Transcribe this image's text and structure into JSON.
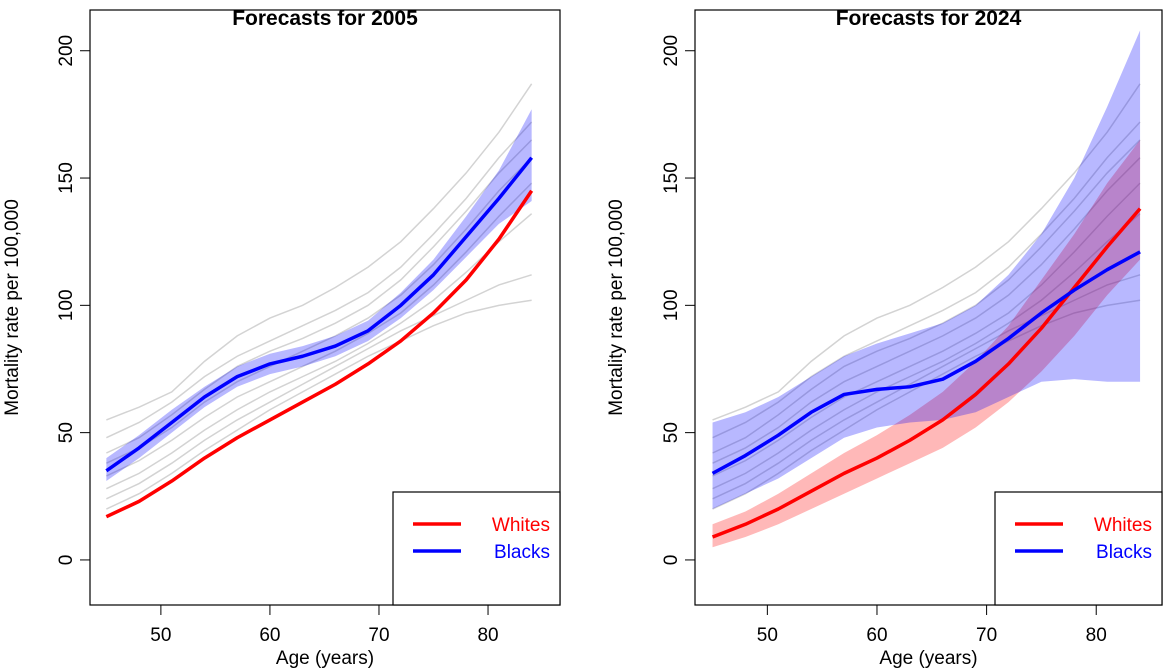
{
  "chart_data": [
    {
      "type": "line",
      "title": "Forecasts for 2005",
      "x_label": "Age (years)",
      "y_label": "Mortality rate per 100,000",
      "x": [
        45,
        48,
        51,
        54,
        57,
        60,
        63,
        66,
        69,
        72,
        75,
        78,
        81,
        84
      ],
      "background_lines": [
        [
          55,
          60,
          66,
          78,
          88,
          95,
          100,
          107,
          115,
          125,
          138,
          152,
          168,
          187
        ],
        [
          48,
          54,
          62,
          72,
          80,
          86,
          92,
          98,
          105,
          115,
          128,
          142,
          158,
          172
        ],
        [
          42,
          48,
          57,
          67,
          76,
          82,
          87,
          93,
          100,
          110,
          123,
          137,
          152,
          165
        ],
        [
          38,
          44,
          52,
          62,
          70,
          76,
          82,
          88,
          95,
          104,
          116,
          130,
          145,
          158
        ],
        [
          33,
          39,
          47,
          56,
          64,
          70,
          76,
          82,
          89,
          97,
          108,
          121,
          135,
          148
        ],
        [
          28,
          34,
          42,
          51,
          59,
          66,
          72,
          78,
          85,
          93,
          102,
          113,
          125,
          136
        ],
        [
          24,
          30,
          38,
          47,
          55,
          62,
          69,
          76,
          83,
          90,
          96,
          102,
          108,
          112
        ],
        [
          20,
          26,
          34,
          43,
          51,
          59,
          66,
          73,
          80,
          86,
          92,
          97,
          100,
          102
        ]
      ],
      "series": [
        {
          "name": "Whites",
          "color": "#ff0000",
          "values": [
            17,
            23,
            31,
            40,
            48,
            55,
            62,
            69,
            77,
            86,
            97,
            110,
            126,
            145
          ]
        },
        {
          "name": "Blacks",
          "color": "#0000ff",
          "values": [
            35,
            44,
            54,
            64,
            72,
            77,
            80,
            84,
            90,
            100,
            112,
            127,
            142,
            158
          ],
          "lower": [
            31,
            40,
            50,
            60,
            68,
            73,
            76,
            80,
            86,
            95,
            106,
            119,
            132,
            141
          ],
          "upper": [
            40,
            49,
            59,
            68,
            76,
            81,
            84,
            88,
            94,
            105,
            118,
            135,
            153,
            177
          ]
        }
      ],
      "xlim": [
        43.5,
        86.6
      ],
      "ylim": [
        -17.7,
        216
      ],
      "xticks": [
        50,
        60,
        70,
        80
      ],
      "yticks": [
        0,
        50,
        100,
        150,
        200
      ],
      "legend": "bottom-right"
    },
    {
      "type": "line",
      "title": "Forecasts for 2024",
      "x_label": "Age (years)",
      "y_label": "Mortality rate per 100,000",
      "x": [
        45,
        48,
        51,
        54,
        57,
        60,
        63,
        66,
        69,
        72,
        75,
        78,
        81,
        84
      ],
      "background_lines": [
        [
          55,
          60,
          66,
          78,
          88,
          95,
          100,
          107,
          115,
          125,
          138,
          152,
          168,
          187
        ],
        [
          48,
          54,
          62,
          72,
          80,
          86,
          92,
          98,
          105,
          115,
          128,
          142,
          158,
          172
        ],
        [
          42,
          48,
          57,
          67,
          76,
          82,
          87,
          93,
          100,
          110,
          123,
          137,
          152,
          165
        ],
        [
          38,
          44,
          52,
          62,
          70,
          76,
          82,
          88,
          95,
          104,
          116,
          130,
          145,
          158
        ],
        [
          33,
          39,
          47,
          56,
          64,
          70,
          76,
          82,
          89,
          97,
          108,
          121,
          135,
          148
        ],
        [
          28,
          34,
          42,
          51,
          59,
          66,
          72,
          78,
          85,
          93,
          102,
          113,
          125,
          136
        ],
        [
          24,
          30,
          38,
          47,
          55,
          62,
          69,
          76,
          83,
          90,
          96,
          102,
          108,
          112
        ],
        [
          20,
          26,
          34,
          43,
          51,
          59,
          66,
          73,
          80,
          86,
          92,
          97,
          100,
          102
        ]
      ],
      "series": [
        {
          "name": "Whites",
          "color": "#ff0000",
          "values": [
            9,
            14,
            20,
            27,
            34,
            40,
            47,
            55,
            65,
            77,
            91,
            107,
            123,
            138
          ],
          "lower": [
            5,
            9,
            14,
            20,
            26,
            32,
            38,
            44,
            52,
            62,
            74,
            88,
            104,
            118
          ],
          "upper": [
            14,
            19,
            26,
            34,
            42,
            49,
            57,
            66,
            78,
            92,
            110,
            128,
            148,
            165
          ]
        },
        {
          "name": "Blacks",
          "color": "#0000ff",
          "values": [
            34,
            41,
            49,
            58,
            65,
            67,
            68,
            71,
            78,
            87,
            97,
            106,
            114,
            121
          ],
          "lower": [
            20,
            26,
            32,
            40,
            48,
            52,
            54,
            55,
            58,
            64,
            70,
            71,
            70,
            70
          ],
          "upper": [
            54,
            58,
            64,
            72,
            80,
            85,
            89,
            93,
            100,
            112,
            128,
            150,
            178,
            208
          ]
        }
      ],
      "xlim": [
        43.4,
        86
      ],
      "ylim": [
        -17.7,
        216
      ],
      "xticks": [
        50,
        60,
        70,
        80
      ],
      "yticks": [
        0,
        50,
        100,
        150,
        200
      ],
      "legend": "bottom-right"
    }
  ]
}
